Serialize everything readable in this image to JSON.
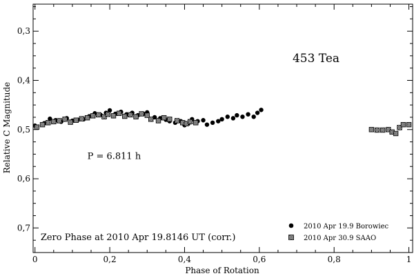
{
  "chart_data": {
    "type": "scatter",
    "title": "453 Tea",
    "xlabel": "Phase of Rotation",
    "ylabel": "Relative C Magnitude",
    "xlim": [
      -0.005,
      1.01
    ],
    "ylim": [
      0.75,
      0.245
    ],
    "y_inverted": true,
    "grid": false,
    "legend_position": "bottom-right",
    "x_ticks": [
      0,
      0.2,
      0.4,
      0.6,
      0.8,
      1
    ],
    "x_tick_labels": [
      "0",
      "0,2",
      "0,4",
      "0,6",
      "0,8",
      "1"
    ],
    "y_ticks": [
      0.3,
      0.4,
      0.5,
      0.6,
      0.7
    ],
    "y_tick_labels": [
      "0,3",
      "0,4",
      "0,5",
      "0,6",
      "0,7"
    ],
    "annotations": [
      {
        "text": "P = 6.811 h",
        "x": 0.14,
        "y": 0.56
      },
      {
        "text": "Zero Phase at 2010 Apr 19.8146 UT (corr.)",
        "x": 0.015,
        "y": 0.725
      }
    ],
    "series": [
      {
        "name": "2010 Apr 19.9 Borowiec",
        "marker": "filled-circle",
        "points": [
          [
            0.0,
            0.492
          ],
          [
            0.025,
            0.487
          ],
          [
            0.04,
            0.478
          ],
          [
            0.055,
            0.481
          ],
          [
            0.07,
            0.484
          ],
          [
            0.085,
            0.477
          ],
          [
            0.1,
            0.482
          ],
          [
            0.115,
            0.48
          ],
          [
            0.13,
            0.479
          ],
          [
            0.145,
            0.473
          ],
          [
            0.16,
            0.467
          ],
          [
            0.175,
            0.47
          ],
          [
            0.19,
            0.466
          ],
          [
            0.2,
            0.461
          ],
          [
            0.215,
            0.468
          ],
          [
            0.23,
            0.464
          ],
          [
            0.245,
            0.469
          ],
          [
            0.26,
            0.466
          ],
          [
            0.275,
            0.471
          ],
          [
            0.29,
            0.468
          ],
          [
            0.3,
            0.465
          ],
          [
            0.32,
            0.475
          ],
          [
            0.335,
            0.477
          ],
          [
            0.35,
            0.48
          ],
          [
            0.36,
            0.483
          ],
          [
            0.375,
            0.486
          ],
          [
            0.39,
            0.483
          ],
          [
            0.4,
            0.491
          ],
          [
            0.41,
            0.488
          ],
          [
            0.42,
            0.479
          ],
          [
            0.435,
            0.483
          ],
          [
            0.45,
            0.481
          ],
          [
            0.46,
            0.49
          ],
          [
            0.475,
            0.486
          ],
          [
            0.49,
            0.483
          ],
          [
            0.5,
            0.479
          ],
          [
            0.515,
            0.474
          ],
          [
            0.53,
            0.477
          ],
          [
            0.54,
            0.471
          ],
          [
            0.555,
            0.474
          ],
          [
            0.57,
            0.469
          ],
          [
            0.585,
            0.474
          ],
          [
            0.595,
            0.466
          ],
          [
            0.605,
            0.46
          ]
        ]
      },
      {
        "name": "2010 Apr 30.9 SAAO",
        "marker": "hatched-square",
        "points": [
          [
            0.005,
            0.495
          ],
          [
            0.02,
            0.49
          ],
          [
            0.035,
            0.486
          ],
          [
            0.05,
            0.484
          ],
          [
            0.065,
            0.482
          ],
          [
            0.08,
            0.479
          ],
          [
            0.095,
            0.485
          ],
          [
            0.11,
            0.481
          ],
          [
            0.125,
            0.478
          ],
          [
            0.14,
            0.476
          ],
          [
            0.155,
            0.472
          ],
          [
            0.17,
            0.47
          ],
          [
            0.185,
            0.474
          ],
          [
            0.195,
            0.469
          ],
          [
            0.21,
            0.472
          ],
          [
            0.225,
            0.467
          ],
          [
            0.24,
            0.473
          ],
          [
            0.255,
            0.47
          ],
          [
            0.27,
            0.474
          ],
          [
            0.285,
            0.468
          ],
          [
            0.3,
            0.471
          ],
          [
            0.31,
            0.479
          ],
          [
            0.33,
            0.482
          ],
          [
            0.345,
            0.476
          ],
          [
            0.36,
            0.479
          ],
          [
            0.38,
            0.482
          ],
          [
            0.395,
            0.486
          ],
          [
            0.405,
            0.488
          ],
          [
            0.415,
            0.484
          ],
          [
            0.43,
            0.486
          ],
          [
            0.9,
            0.5
          ],
          [
            0.915,
            0.501
          ],
          [
            0.93,
            0.501
          ],
          [
            0.945,
            0.5
          ],
          [
            0.955,
            0.505
          ],
          [
            0.965,
            0.508
          ],
          [
            0.975,
            0.496
          ],
          [
            0.985,
            0.49
          ],
          [
            1.0,
            0.49
          ]
        ]
      }
    ]
  }
}
